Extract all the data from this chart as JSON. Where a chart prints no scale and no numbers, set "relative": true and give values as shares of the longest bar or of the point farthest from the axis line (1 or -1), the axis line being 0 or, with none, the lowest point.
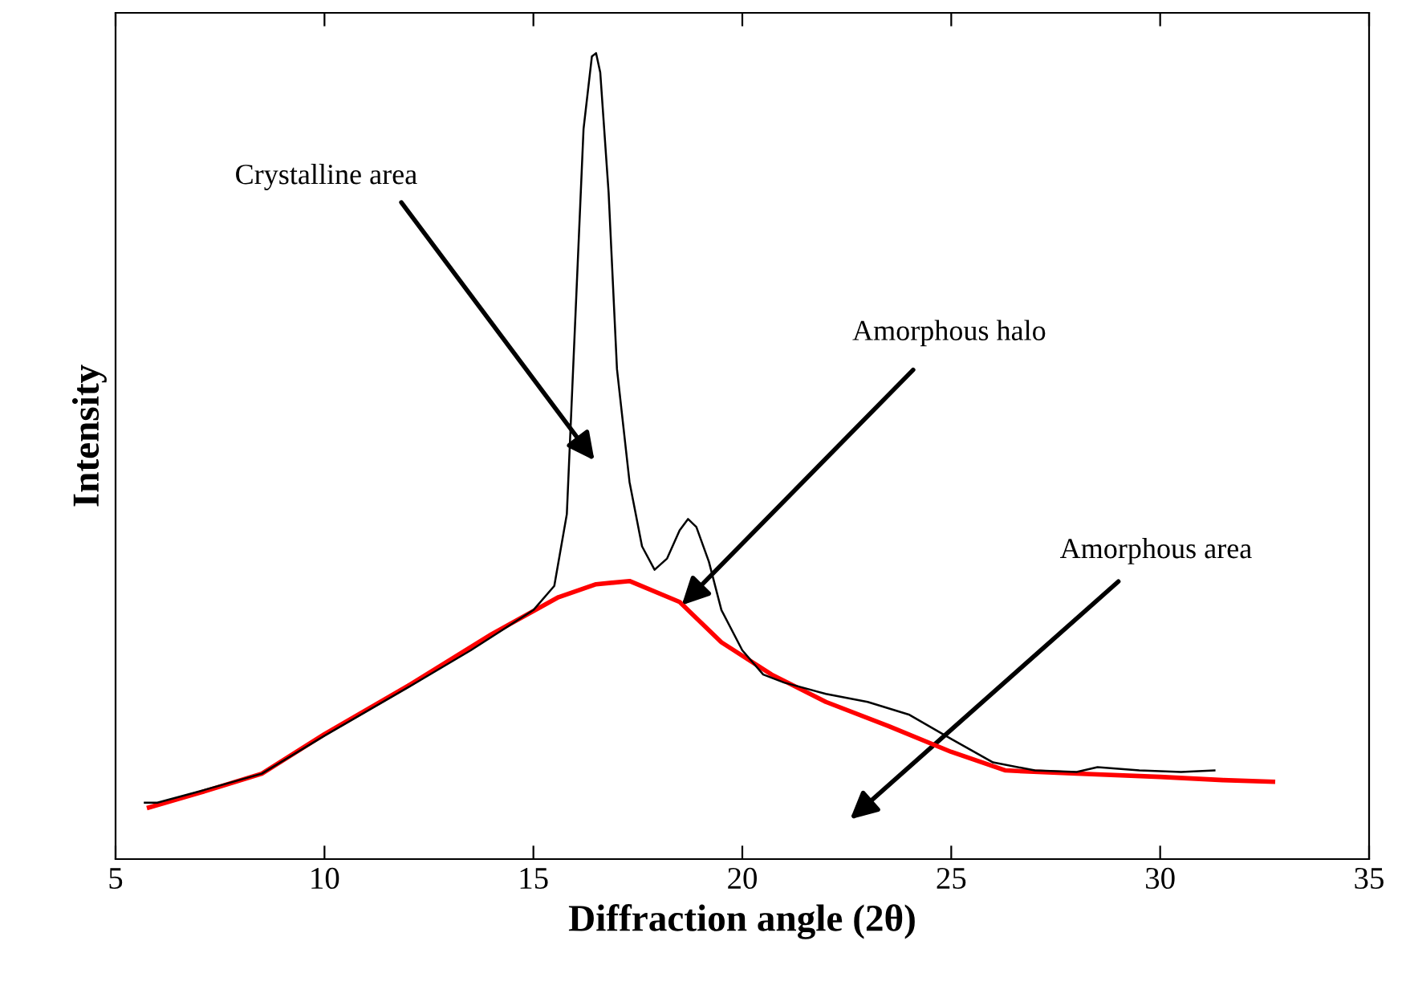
{
  "chart_data": {
    "type": "line",
    "relative": true,
    "xlabel": "Diffraction angle (2θ)",
    "ylabel": "Intensity",
    "xlim": [
      5,
      35
    ],
    "xticks": [
      5,
      10,
      15,
      20,
      25,
      30,
      35
    ],
    "grid": false,
    "marker": "none",
    "line_style": "solid",
    "series": [
      {
        "color": "#000000",
        "x": [
          5.7,
          6,
          7,
          8.5,
          10,
          12,
          13.5,
          15,
          15.5,
          15.8,
          16.0,
          16.2,
          16.4,
          16.5,
          16.6,
          16.8,
          17.0,
          17.3,
          17.6,
          17.9,
          18.2,
          18.5,
          18.7,
          18.9,
          19.2,
          19.5,
          20,
          20.5,
          21,
          22,
          23,
          24,
          25,
          26,
          27,
          28,
          28.5,
          29.5,
          30.5,
          31.3
        ],
        "values": [
          0.07,
          0.07,
          0.084,
          0.106,
          0.153,
          0.213,
          0.259,
          0.309,
          0.339,
          0.428,
          0.667,
          0.906,
          0.996,
          1.0,
          0.976,
          0.827,
          0.608,
          0.468,
          0.388,
          0.359,
          0.373,
          0.408,
          0.422,
          0.412,
          0.369,
          0.309,
          0.259,
          0.229,
          0.219,
          0.205,
          0.195,
          0.179,
          0.149,
          0.12,
          0.11,
          0.108,
          0.114,
          0.11,
          0.108,
          0.11
        ]
      },
      {
        "color": "#ff0000",
        "x": [
          5.8,
          7,
          8.5,
          10,
          12,
          14,
          15.6,
          16.5,
          17.3,
          18.5,
          19.5,
          20.7,
          22,
          23.5,
          25,
          26.3,
          28,
          30,
          31.5,
          32.7
        ],
        "values": [
          0.064,
          0.082,
          0.106,
          0.155,
          0.215,
          0.279,
          0.325,
          0.341,
          0.345,
          0.319,
          0.269,
          0.229,
          0.195,
          0.165,
          0.133,
          0.11,
          0.106,
          0.102,
          0.098,
          0.096
        ]
      }
    ],
    "annotations": [
      "Crystalline area",
      {
        "text": "Amorphous halo",
        "x": 18.55,
        "y": 0.315
      },
      "Amorphous area"
    ]
  }
}
